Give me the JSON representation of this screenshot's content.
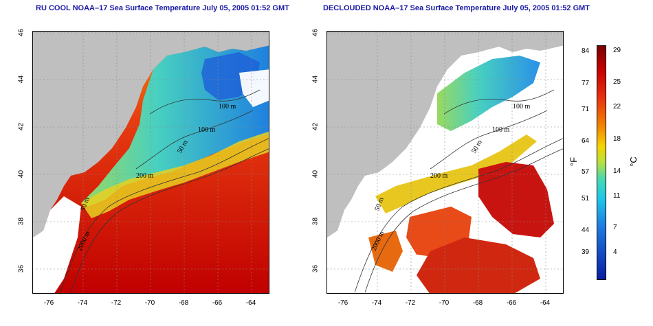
{
  "panels": [
    {
      "id": "left",
      "title": "RU COOL NOAA–17 Sea Surface Temperature July 05, 2005 01:52 GMT",
      "contour_labels": [
        "100 m",
        "100 m",
        "50 m",
        "200 m",
        "50 m",
        "2000 m"
      ]
    },
    {
      "id": "right",
      "title": "DECLOUDED NOAA–17 Sea Surface Temperature July 05, 2005 01:52 GMT",
      "contour_labels": [
        "100 m",
        "100 m",
        "50 m",
        "200 m",
        "50 m",
        "2000 m"
      ]
    }
  ],
  "axes": {
    "lat_ticks": [
      "46",
      "44",
      "42",
      "40",
      "38",
      "36"
    ],
    "lon_ticks": [
      "-76",
      "-74",
      "-72",
      "-70",
      "-68",
      "-66",
      "-64"
    ]
  },
  "colorbar": {
    "fahrenheit_ticks": [
      "84",
      "77",
      "71",
      "64",
      "57",
      "51",
      "44",
      "39"
    ],
    "celsius_ticks": [
      "29",
      "25",
      "22",
      "18",
      "14",
      "11",
      "7",
      "4"
    ],
    "unit_f": "°F",
    "unit_c": "°C"
  },
  "colors": {
    "land": "#bfbfbf",
    "title": "#1a1aa6",
    "cloud": "#ffffff"
  }
}
